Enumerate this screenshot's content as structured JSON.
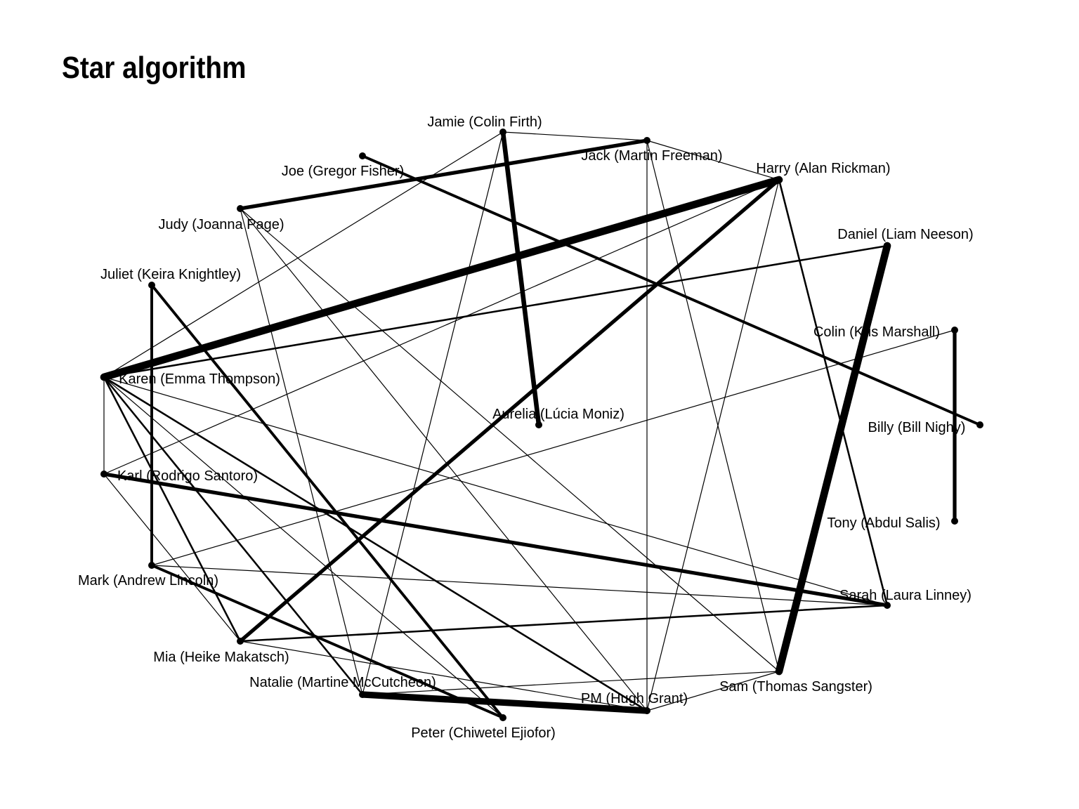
{
  "title": "Star algorithm",
  "colors": {
    "edge": "#000000",
    "node": "#000000",
    "background": "#ffffff"
  },
  "nodes": [
    {
      "id": "jamie",
      "label": "Jamie (Colin Firth)"
    },
    {
      "id": "jack",
      "label": "Jack (Martin Freeman)"
    },
    {
      "id": "joe",
      "label": "Joe (Gregor Fisher)"
    },
    {
      "id": "harry",
      "label": "Harry (Alan Rickman)"
    },
    {
      "id": "judy",
      "label": "Judy (Joanna Page)"
    },
    {
      "id": "daniel",
      "label": "Daniel (Liam Neeson)"
    },
    {
      "id": "juliet",
      "label": "Juliet (Keira Knightley)"
    },
    {
      "id": "colin",
      "label": "Colin (Kris Marshall)"
    },
    {
      "id": "karen",
      "label": "Karen (Emma Thompson)"
    },
    {
      "id": "aurelia",
      "label": "Aurelia (Lúcia Moniz)"
    },
    {
      "id": "billy",
      "label": "Billy (Bill Nighy)"
    },
    {
      "id": "karl",
      "label": "Karl (Rodrigo Santoro)"
    },
    {
      "id": "tony",
      "label": "Tony (Abdul Salis)"
    },
    {
      "id": "mark",
      "label": "Mark (Andrew Lincoln)"
    },
    {
      "id": "sarah",
      "label": "Sarah (Laura Linney)"
    },
    {
      "id": "mia",
      "label": "Mia (Heike Makatsch)"
    },
    {
      "id": "natalie",
      "label": "Natalie (Martine McCutcheon)"
    },
    {
      "id": "sam",
      "label": "Sam (Thomas Sangster)"
    },
    {
      "id": "pm",
      "label": "PM (Hugh Grant)"
    },
    {
      "id": "peter",
      "label": "Peter (Chiwetel Ejiofor)"
    }
  ],
  "edges": [
    {
      "source": "karen",
      "target": "harry",
      "weight": 9
    },
    {
      "source": "daniel",
      "target": "sam",
      "weight": 9
    },
    {
      "source": "natalie",
      "target": "pm",
      "weight": 8
    },
    {
      "source": "jamie",
      "target": "aurelia",
      "weight": 6
    },
    {
      "source": "mia",
      "target": "harry",
      "weight": 5
    },
    {
      "source": "karl",
      "target": "sarah",
      "weight": 5
    },
    {
      "source": "colin",
      "target": "tony",
      "weight": 5
    },
    {
      "source": "judy",
      "target": "jack",
      "weight": 5
    },
    {
      "source": "mark",
      "target": "juliet",
      "weight": 4
    },
    {
      "source": "juliet",
      "target": "peter",
      "weight": 4
    },
    {
      "source": "mark",
      "target": "peter",
      "weight": 4
    },
    {
      "source": "joe",
      "target": "billy",
      "weight": 4
    },
    {
      "source": "karen",
      "target": "mia",
      "weight": 3
    },
    {
      "source": "karen",
      "target": "pm",
      "weight": 3
    },
    {
      "source": "karen",
      "target": "natalie",
      "weight": 3
    },
    {
      "source": "karen",
      "target": "daniel",
      "weight": 3
    },
    {
      "source": "harry",
      "target": "sarah",
      "weight": 3
    },
    {
      "source": "mia",
      "target": "sarah",
      "weight": 3
    },
    {
      "source": "karen",
      "target": "karl",
      "weight": 2
    },
    {
      "source": "karen",
      "target": "sarah",
      "weight": 2
    },
    {
      "source": "karen",
      "target": "jamie",
      "weight": 2
    },
    {
      "source": "jamie",
      "target": "jack",
      "weight": 2
    },
    {
      "source": "jamie",
      "target": "natalie",
      "weight": 2
    },
    {
      "source": "jack",
      "target": "harry",
      "weight": 2
    },
    {
      "source": "jack",
      "target": "pm",
      "weight": 2
    },
    {
      "source": "jack",
      "target": "sam",
      "weight": 2
    },
    {
      "source": "harry",
      "target": "pm",
      "weight": 2
    },
    {
      "source": "harry",
      "target": "karl",
      "weight": 2
    },
    {
      "source": "judy",
      "target": "natalie",
      "weight": 2
    },
    {
      "source": "judy",
      "target": "sam",
      "weight": 2
    },
    {
      "source": "judy",
      "target": "pm",
      "weight": 2
    },
    {
      "source": "mark",
      "target": "sarah",
      "weight": 2
    },
    {
      "source": "mark",
      "target": "colin",
      "weight": 2
    },
    {
      "source": "karl",
      "target": "mia",
      "weight": 2
    },
    {
      "source": "mia",
      "target": "pm",
      "weight": 2
    },
    {
      "source": "natalie",
      "target": "sam",
      "weight": 2
    },
    {
      "source": "sam",
      "target": "pm",
      "weight": 2
    },
    {
      "source": "karen",
      "target": "peter",
      "weight": 2
    }
  ]
}
